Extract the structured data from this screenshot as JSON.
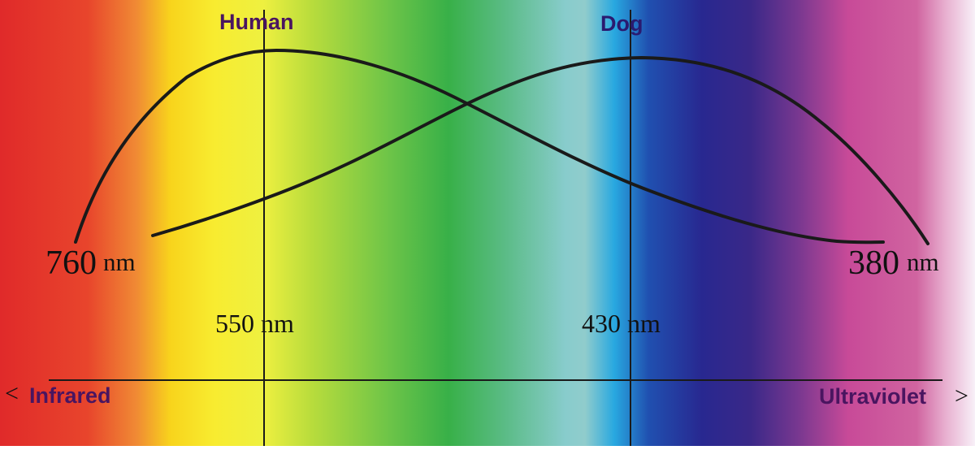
{
  "labels": {
    "human": "Human",
    "dog": "Dog",
    "infrared_arrow": "<",
    "infrared": "Infrared",
    "ultraviolet": "Ultraviolet",
    "ultraviolet_arrow": ">"
  },
  "wavelengths": {
    "left_value": "760",
    "left_unit": "nm",
    "right_value": "380",
    "right_unit": "nm",
    "human_peak": "550 nm",
    "dog_peak": "430 nm"
  },
  "colors": {
    "label_purple": "#4a1560",
    "curve": "#1a1a1a",
    "spectrum": [
      "#e02a2a",
      "#f07830",
      "#f8d820",
      "#f0f040",
      "#98d040",
      "#38b048",
      "#80c8c0",
      "#28a8e0",
      "#282890",
      "#603090",
      "#d04090",
      "#d060a0",
      "#f8f0f8"
    ]
  }
}
